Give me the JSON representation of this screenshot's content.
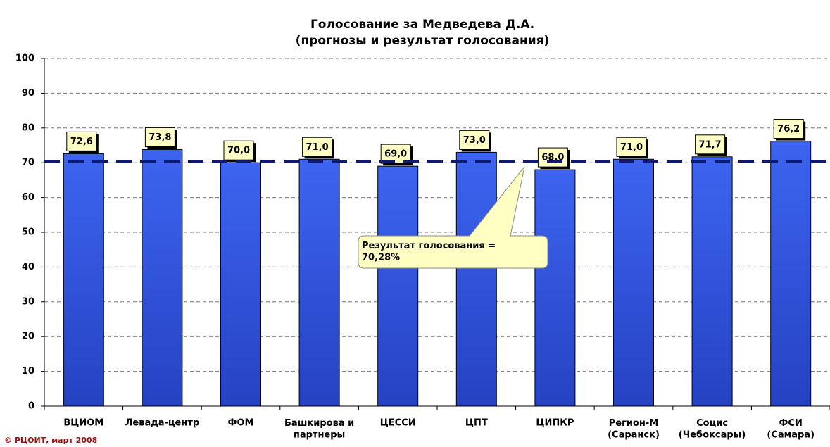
{
  "chart_data": {
    "type": "bar",
    "title": "Голосование за Медведева Д.А.",
    "subtitle": "(прогнозы и результат голосования)",
    "categories": [
      "ВЦИОМ",
      "Левада-центр",
      "ФОМ",
      "Башкирова и\nпартнеры",
      "ЦЕССИ",
      "ЦПТ",
      "ЦИПКР",
      "Регион-М\n(Саранск)",
      "Социс\n(Чебоксары)",
      "ФСИ\n(Самара)"
    ],
    "values": [
      72.6,
      73.8,
      70.0,
      71.0,
      69.0,
      73.0,
      68.0,
      71.0,
      71.7,
      76.2
    ],
    "value_labels": [
      "72,6",
      "73,8",
      "70,0",
      "71,0",
      "69,0",
      "73,0",
      "68,0",
      "71,0",
      "71,7",
      "76,2"
    ],
    "color": "#3357e0",
    "ylim": [
      0,
      100
    ],
    "yticks": [
      0,
      10,
      20,
      30,
      40,
      50,
      60,
      70,
      80,
      90,
      100
    ],
    "grid": true,
    "reference_line": {
      "value": 70.28,
      "label": "Результат голосования =\n70,28%",
      "color": "#0d1a6e"
    },
    "footer": "© РЦОИТ, март 2008"
  }
}
